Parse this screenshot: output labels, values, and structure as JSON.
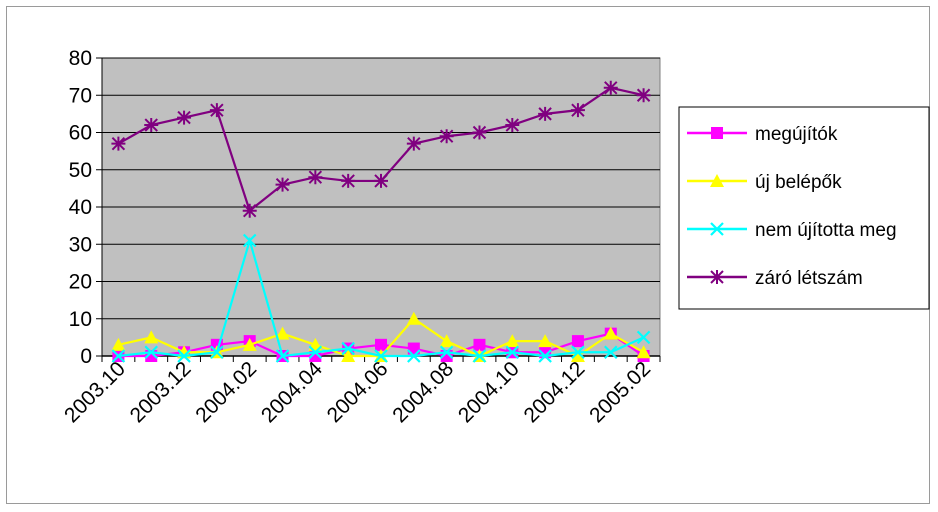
{
  "chart_data": {
    "type": "line",
    "title": "",
    "xlabel": "",
    "ylabel": "",
    "ylim": [
      0,
      80
    ],
    "yticks": [
      0,
      10,
      20,
      30,
      40,
      50,
      60,
      70,
      80
    ],
    "grid": true,
    "legend_position": "right",
    "categories": [
      "2003.10",
      "2003.11",
      "2003.12",
      "2004.01",
      "2004.02",
      "2004.03",
      "2004.04",
      "2004.05",
      "2004.06",
      "2004.07",
      "2004.08",
      "2004.09",
      "2004.10",
      "2004.11",
      "2004.12",
      "2005.01",
      "2005.02"
    ],
    "x_tick_labels": [
      "2003.10",
      "2003.12",
      "2004.02",
      "2004.04",
      "2004.06",
      "2004.08",
      "2004.10",
      "2004.12",
      "2005.02"
    ],
    "series": [
      {
        "name": "megújítók",
        "color": "#ff00ff",
        "marker": "square",
        "values": [
          0,
          0,
          1,
          3,
          4,
          0,
          0,
          2,
          3,
          2,
          0,
          3,
          1,
          1,
          4,
          6,
          0
        ]
      },
      {
        "name": "új belépők",
        "color": "#ffff00",
        "marker": "triangle",
        "values": [
          3,
          5,
          1,
          1,
          3,
          6,
          3,
          0,
          0,
          10,
          4,
          0,
          4,
          4,
          0,
          6,
          1
        ]
      },
      {
        "name": "nem újította meg",
        "color": "#00ffff",
        "marker": "x",
        "values": [
          0,
          1,
          0,
          1,
          31,
          0,
          1,
          2,
          0,
          0,
          1,
          0,
          1,
          0,
          1,
          1,
          5
        ]
      },
      {
        "name": "záró létszám",
        "color": "#800080",
        "marker": "star",
        "values": [
          57,
          62,
          64,
          66,
          39,
          46,
          48,
          47,
          47,
          57,
          59,
          60,
          62,
          65,
          66,
          72,
          70
        ]
      }
    ]
  }
}
